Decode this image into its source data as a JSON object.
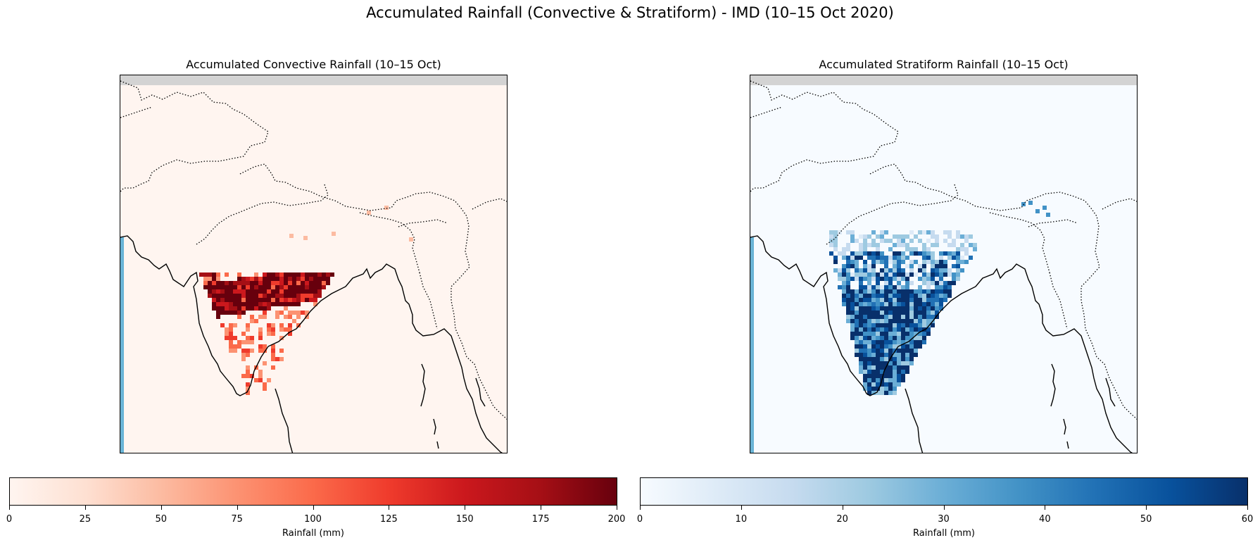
{
  "figure": {
    "title": "Accumulated Rainfall (Convective & Stratiform) - IMD (10–15 Oct 2020)"
  },
  "panels": [
    {
      "title": "Accumulated Convective Rainfall (10–15 Oct)",
      "colormap": "Reds",
      "background_color": "#fff5f0",
      "colorbar": {
        "label": "Rainfall (mm)",
        "range": [
          0,
          200
        ],
        "ticks": [
          "0",
          "25",
          "50",
          "75",
          "100",
          "125",
          "150",
          "175",
          "200"
        ],
        "colors": [
          "#fff5f0",
          "#fee0d2",
          "#fcbba1",
          "#fc9272",
          "#fb6a4a",
          "#ef3b2c",
          "#cb181d",
          "#a50f15",
          "#67000d"
        ]
      }
    },
    {
      "title": "Accumulated Stratiform Rainfall (10–15 Oct)",
      "colormap": "Blues",
      "background_color": "#f7fbff",
      "colorbar": {
        "label": "Rainfall (mm)",
        "range": [
          0,
          60
        ],
        "ticks": [
          "0",
          "10",
          "20",
          "30",
          "40",
          "50",
          "60"
        ],
        "colors": [
          "#f7fbff",
          "#deebf7",
          "#c6dbef",
          "#9ecae1",
          "#6baed6",
          "#4292c6",
          "#2171b5",
          "#08519c",
          "#08306b"
        ]
      }
    }
  ],
  "map_features": {
    "coastline": "solid-black",
    "borders": "dotted-black",
    "sea_strip_color": "#6ab4d6",
    "nodata_band_color": "#d3d3d3"
  }
}
